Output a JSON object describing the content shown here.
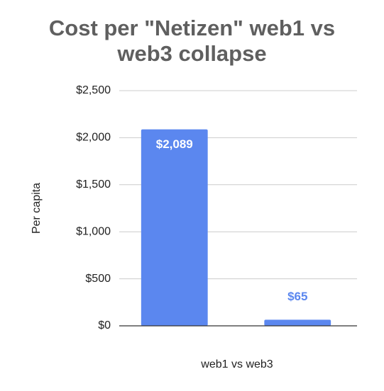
{
  "chart_data": {
    "type": "bar",
    "title": "Cost per \"Netizen\" web1 vs web3 collapse",
    "x_label": "web1 vs web3",
    "y_label": "Per capita",
    "categories": [
      null,
      null
    ],
    "values": [
      2089,
      65
    ],
    "value_labels": [
      "$2,089",
      "$65"
    ],
    "color": "#5b87ef",
    "ylim": [
      0,
      2500
    ],
    "yticks": [
      {
        "value": 0,
        "label": "$0"
      },
      {
        "value": 500,
        "label": "$500"
      },
      {
        "value": 1000,
        "label": "$1,000"
      },
      {
        "value": 1500,
        "label": "$1,500"
      },
      {
        "value": 2000,
        "label": "$2,000"
      },
      {
        "value": 2500,
        "label": "$2,500"
      }
    ],
    "grid": true
  }
}
